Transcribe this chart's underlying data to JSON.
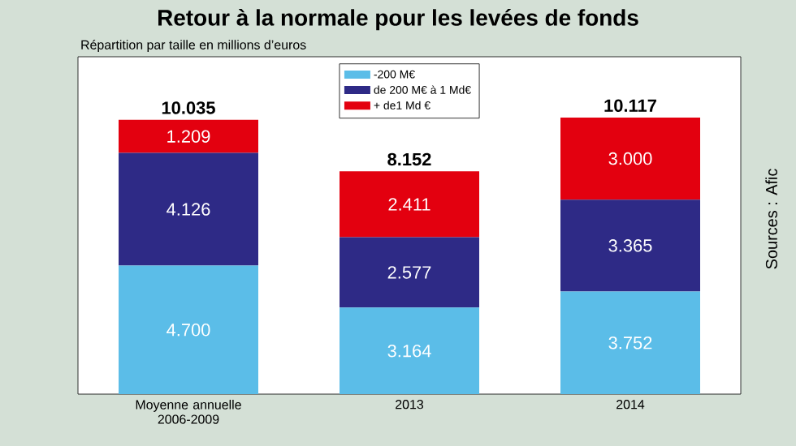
{
  "chart_data": {
    "type": "bar",
    "stacked": true,
    "title": "Retour à la normale pour les levées de fonds",
    "subtitle": "Répartition par taille en millions d’euros",
    "categories": [
      "Moyenne annuelle 2006-2009",
      "2013",
      "2014"
    ],
    "series": [
      {
        "name": "-200 M€",
        "color": "#5bbde8",
        "values": [
          4700,
          3164,
          3752
        ],
        "value_labels": [
          "4.700",
          "3.164",
          "3.752"
        ]
      },
      {
        "name": "de 200 M€ à 1 Md€",
        "color": "#2e2a86",
        "values": [
          4126,
          2577,
          3365
        ],
        "value_labels": [
          "4.126",
          "2.577",
          "3.365"
        ]
      },
      {
        "name": "+ de1 Md €",
        "color": "#e3000f",
        "values": [
          1209,
          2411,
          3000
        ],
        "value_labels": [
          "1.209",
          "2.411",
          "3.000"
        ]
      }
    ],
    "totals": [
      "10.035",
      "8.152",
      "10.117"
    ],
    "legend": "top",
    "tick_labels": "x",
    "annotations": [
      "Sources : Afic"
    ]
  }
}
